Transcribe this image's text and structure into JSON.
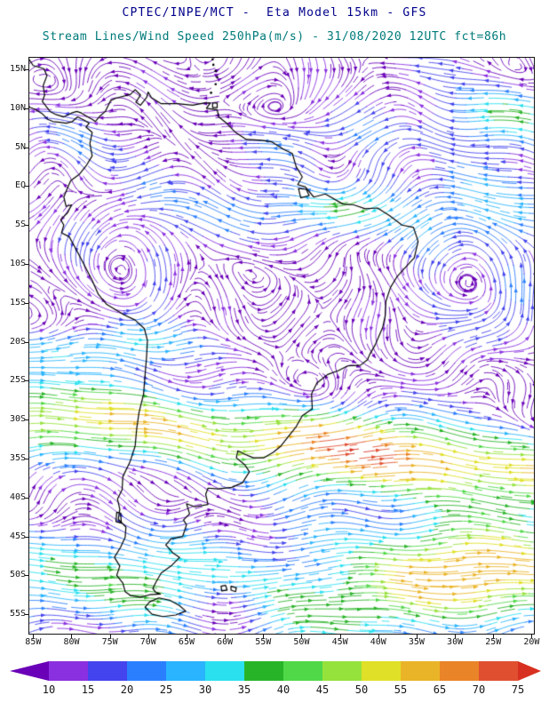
{
  "header": {
    "line1": "CPTEC/INPE/MCT -  Eta Model 15km - GFS",
    "line2": "Stream Lines/Wind Speed 250hPa(m/s) - 31/08/2020 12UTC fct=86h",
    "line1_color": "#00008b",
    "line2_color": "#007a7a"
  },
  "map": {
    "lat_ticks": [
      "15N",
      "10N",
      "5N",
      "EQ",
      "5S",
      "10S",
      "15S",
      "20S",
      "25S",
      "30S",
      "35S",
      "40S",
      "45S",
      "50S",
      "55S"
    ],
    "lon_ticks": [
      "85W",
      "80W",
      "75W",
      "70W",
      "65W",
      "60W",
      "55W",
      "50W",
      "45W",
      "40W",
      "35W",
      "30W",
      "25W",
      "20W"
    ]
  },
  "colorbar": {
    "labels": [
      "10",
      "15",
      "20",
      "25",
      "30",
      "35",
      "40",
      "45",
      "50",
      "55",
      "65",
      "70",
      "75"
    ],
    "colors": [
      "#6a00b8",
      "#8a30e0",
      "#4444ee",
      "#2a7fff",
      "#2ab4ff",
      "#2ae0ee",
      "#28b428",
      "#50d848",
      "#96e23c",
      "#e0e028",
      "#eab428",
      "#ea8428",
      "#e05030",
      "#d83020"
    ]
  },
  "chart_data": {
    "type": "streamline-map",
    "variable": "Stream Lines/Wind Speed",
    "level": "250hPa",
    "unit": "m/s",
    "model": "Eta Model 15km",
    "boundary_model": "GFS",
    "institution": "CPTEC/INPE/MCT",
    "run": "31/08/2020 12UTC",
    "forecast": "fct=86h",
    "lon_range": [
      "85W",
      "20W"
    ],
    "lat_range": [
      "55S",
      "15N"
    ],
    "speed_levels": [
      10,
      15,
      20,
      25,
      30,
      35,
      40,
      45,
      50,
      55,
      65,
      70,
      75
    ]
  }
}
